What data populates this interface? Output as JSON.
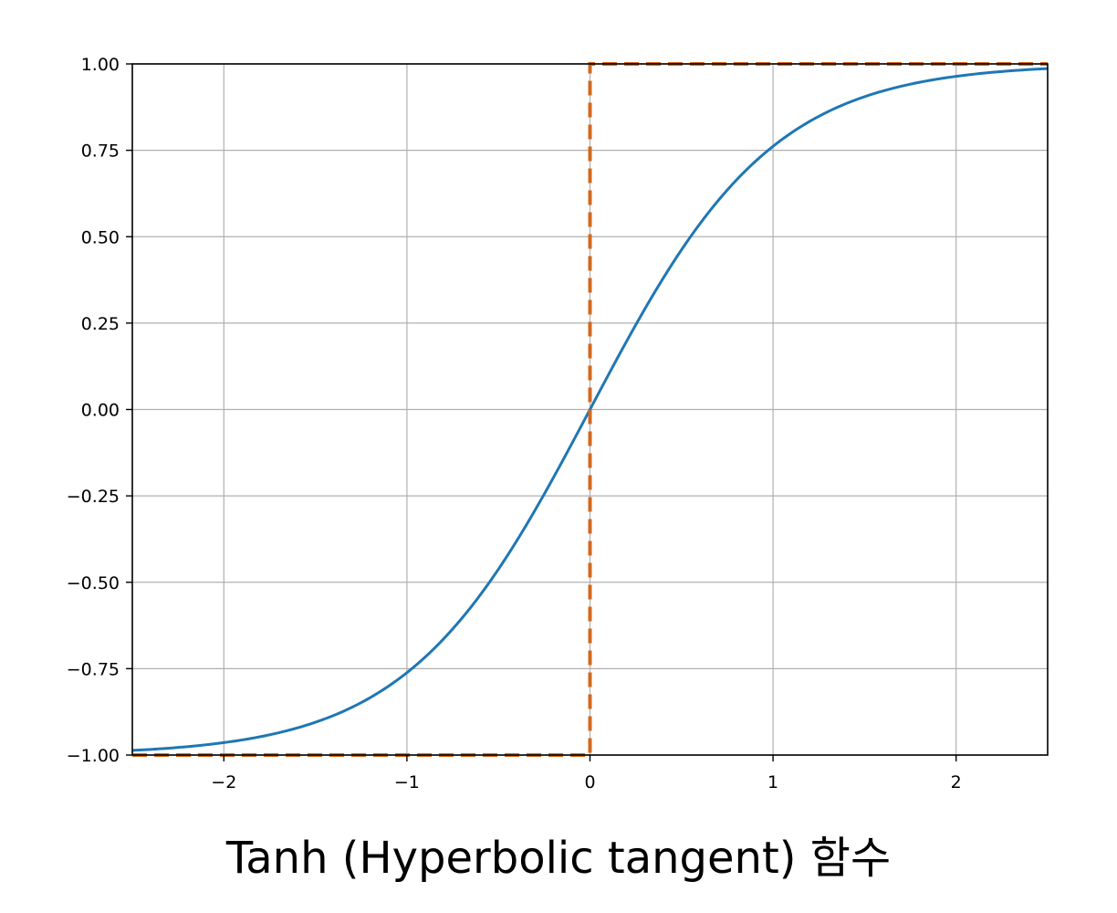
{
  "caption": "Tanh (Hyperbolic tangent) 함수",
  "chart_data": {
    "type": "line",
    "title": "",
    "xlabel": "",
    "ylabel": "",
    "xlim": [
      -2.5,
      2.5
    ],
    "ylim": [
      -1.0,
      1.0
    ],
    "grid": true,
    "xticks": [
      -2,
      -1,
      0,
      1,
      2
    ],
    "xtick_labels": [
      "−2",
      "−1",
      "0",
      "1",
      "2"
    ],
    "yticks": [
      -1.0,
      -0.75,
      -0.5,
      -0.25,
      0.0,
      0.25,
      0.5,
      0.75,
      1.0
    ],
    "ytick_labels": [
      "−1.00",
      "−0.75",
      "−0.50",
      "−0.25",
      "0.00",
      "0.25",
      "0.50",
      "0.75",
      "1.00"
    ],
    "series": [
      {
        "style": "solid",
        "color": "#1f77b4",
        "x": [
          -2.5,
          -2.25,
          -2.0,
          -1.75,
          -1.5,
          -1.25,
          -1.0,
          -0.75,
          -0.5,
          -0.25,
          0.0,
          0.25,
          0.5,
          0.75,
          1.0,
          1.25,
          1.5,
          1.75,
          2.0,
          2.25,
          2.5
        ],
        "y": [
          -0.987,
          -0.978,
          -0.964,
          -0.941,
          -0.905,
          -0.848,
          -0.762,
          -0.635,
          -0.462,
          -0.245,
          0.0,
          0.245,
          0.462,
          0.635,
          0.762,
          0.848,
          0.905,
          0.941,
          0.964,
          0.978,
          0.987
        ]
      },
      {
        "style": "dashed",
        "color": "#d2691e",
        "x": [
          -2.5,
          0.0,
          0.0,
          2.5
        ],
        "y": [
          -1.0,
          -1.0,
          1.0,
          1.0
        ]
      }
    ]
  }
}
